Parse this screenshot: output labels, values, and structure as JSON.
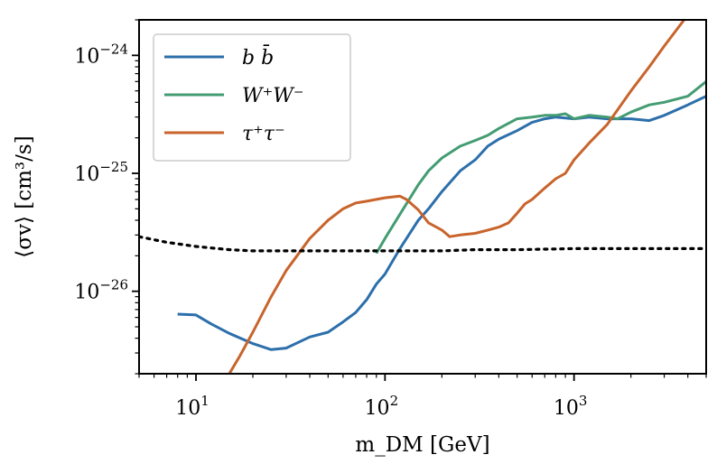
{
  "chart_data": {
    "type": "line",
    "title": "",
    "xlabel": "m_DM [GeV]",
    "ylabel": "⟨σv⟩ [cm³/s]",
    "xscale": "log",
    "yscale": "log",
    "xlim": [
      5,
      5000
    ],
    "ylim": [
      2e-27,
      2e-24
    ],
    "grid": false,
    "legend_position": "top-left",
    "x_ticks": [
      {
        "base": "10",
        "exp": "1"
      },
      {
        "base": "10",
        "exp": "2"
      },
      {
        "base": "10",
        "exp": "3"
      }
    ],
    "y_ticks": [
      {
        "base": "10",
        "exp": "−26"
      },
      {
        "base": "10",
        "exp": "−25"
      },
      {
        "base": "10",
        "exp": "−24"
      }
    ],
    "series": [
      {
        "name": "b b̄",
        "color": "#2c6fab",
        "style": "solid",
        "x": [
          8,
          10,
          12,
          15,
          20,
          25,
          30,
          40,
          50,
          60,
          70,
          80,
          90,
          100,
          120,
          150,
          170,
          200,
          250,
          300,
          350,
          400,
          500,
          600,
          700,
          800,
          1000,
          1200,
          1500,
          2000,
          2500,
          3000,
          4000,
          5000
        ],
        "y": [
          6.4e-27,
          6.3e-27,
          5.3e-27,
          4.4e-27,
          3.6e-27,
          3.2e-27,
          3.3e-27,
          4.1e-27,
          4.5e-27,
          5.5e-27,
          6.6e-27,
          8.5e-27,
          1.15e-26,
          1.4e-26,
          2.3e-26,
          4e-26,
          5e-26,
          7e-26,
          1.05e-25,
          1.3e-25,
          1.7e-25,
          1.95e-25,
          2.3e-25,
          2.7e-25,
          2.9e-25,
          3e-25,
          2.9e-25,
          3e-25,
          2.9e-25,
          2.9e-25,
          2.8e-25,
          3.1e-25,
          3.8e-25,
          4.5e-25
        ]
      },
      {
        "name": "W⁺W⁻",
        "color": "#449c73",
        "style": "solid",
        "x": [
          90,
          100,
          120,
          150,
          170,
          200,
          250,
          300,
          350,
          400,
          500,
          600,
          700,
          800,
          900,
          1000,
          1200,
          1500,
          1700,
          2000,
          2500,
          3000,
          4000,
          5000
        ],
        "y": [
          2.1e-26,
          2.8e-26,
          4.5e-26,
          8e-26,
          1.05e-25,
          1.35e-25,
          1.7e-25,
          1.9e-25,
          2.1e-25,
          2.4e-25,
          2.9e-25,
          3e-25,
          3.1e-25,
          3.1e-25,
          3.2e-25,
          2.9e-25,
          3.1e-25,
          3e-25,
          2.9e-25,
          3.3e-25,
          3.8e-25,
          4e-25,
          4.5e-25,
          6e-25
        ]
      },
      {
        "name": "τ⁺τ⁻",
        "color": "#c8642c",
        "style": "solid",
        "x": [
          15,
          17,
          20,
          25,
          30,
          40,
          50,
          60,
          70,
          80,
          100,
          120,
          130,
          150,
          170,
          200,
          220,
          250,
          300,
          350,
          400,
          450,
          500,
          550,
          600,
          700,
          800,
          900,
          1000,
          1200,
          1500,
          2000,
          2500,
          3000,
          4000
        ],
        "y": [
          2e-27,
          2.8e-27,
          4.5e-27,
          9e-27,
          1.5e-26,
          2.8e-26,
          4e-26,
          5e-26,
          5.6e-26,
          5.8e-26,
          6.2e-26,
          6.4e-26,
          6e-26,
          4.9e-26,
          3.8e-26,
          3.3e-26,
          2.9e-26,
          3e-26,
          3.1e-26,
          3.3e-26,
          3.5e-26,
          3.8e-26,
          4.6e-26,
          5.5e-26,
          6e-26,
          7.5e-26,
          9e-26,
          1e-25,
          1.3e-25,
          1.8e-25,
          2.6e-25,
          5e-25,
          8e-25,
          1.2e-24,
          2.2e-24
        ]
      },
      {
        "name": "",
        "color": "#000000",
        "style": "dotted",
        "in_legend": false,
        "x": [
          5,
          7,
          10,
          15,
          20,
          30,
          50,
          70,
          100,
          150,
          200,
          300,
          500,
          1000,
          2000,
          3000,
          5000
        ],
        "y": [
          2.9e-26,
          2.6e-26,
          2.4e-26,
          2.25e-26,
          2.2e-26,
          2.2e-26,
          2.2e-26,
          2.2e-26,
          2.2e-26,
          2.2e-26,
          2.2e-26,
          2.25e-26,
          2.25e-26,
          2.3e-26,
          2.3e-26,
          2.3e-26,
          2.3e-26
        ]
      }
    ]
  }
}
